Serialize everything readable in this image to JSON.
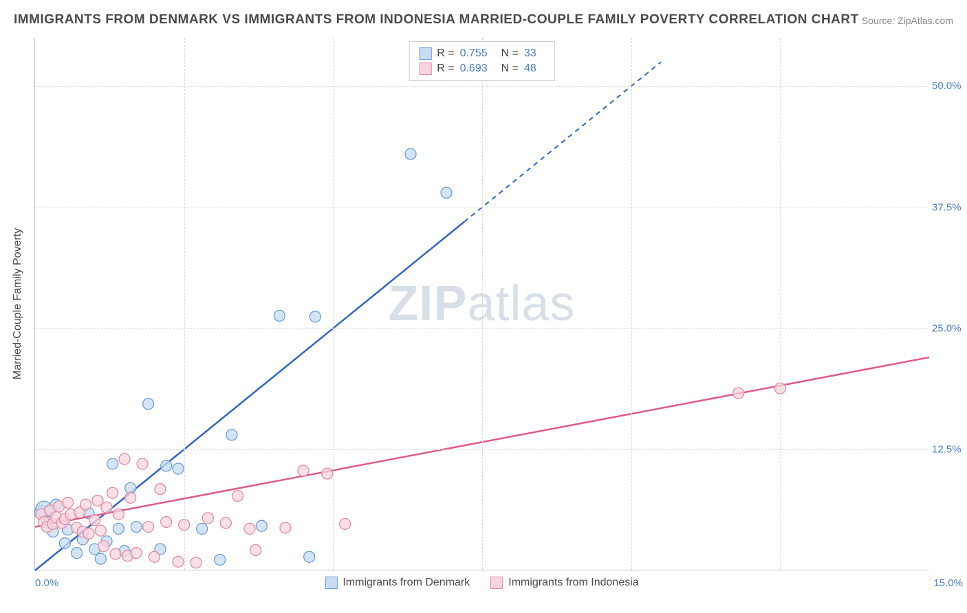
{
  "title": "IMMIGRANTS FROM DENMARK VS IMMIGRANTS FROM INDONESIA MARRIED-COUPLE FAMILY POVERTY CORRELATION CHART",
  "source": "Source: ZipAtlas.com",
  "watermark_a": "ZIP",
  "watermark_b": "atlas",
  "y_axis": {
    "label": "Married-Couple Family Poverty",
    "ticks": [
      {
        "v": 12.5,
        "label": "12.5%"
      },
      {
        "v": 25.0,
        "label": "25.0%"
      },
      {
        "v": 37.5,
        "label": "37.5%"
      },
      {
        "v": 50.0,
        "label": "50.0%"
      }
    ],
    "min": 0,
    "max": 55
  },
  "x_axis": {
    "min": 0,
    "max": 15,
    "left_label": "0.0%",
    "right_label": "15.0%",
    "grid_steps": [
      2.5,
      5.0,
      7.5,
      10.0,
      12.5
    ]
  },
  "series": [
    {
      "key": "denmark",
      "name": "Immigrants from Denmark",
      "R": "0.755",
      "N": "33",
      "color_fill": "#c7dbf2",
      "color_stroke": "#6a9fd8",
      "line_color": "#2e66c4",
      "line_start": {
        "x": 0,
        "y": 0
      },
      "line_solid_end": {
        "x": 7.2,
        "y": 36
      },
      "line_dash_end": {
        "x": 10.5,
        "y": 52.5
      },
      "points": [
        {
          "x": 0.1,
          "y": 6.0,
          "r": 10
        },
        {
          "x": 0.15,
          "y": 6.3,
          "r": 12
        },
        {
          "x": 0.2,
          "y": 5.2
        },
        {
          "x": 0.25,
          "y": 6.1
        },
        {
          "x": 0.3,
          "y": 4.0
        },
        {
          "x": 0.35,
          "y": 6.8
        },
        {
          "x": 0.5,
          "y": 2.8
        },
        {
          "x": 0.55,
          "y": 4.2
        },
        {
          "x": 0.7,
          "y": 1.8
        },
        {
          "x": 0.8,
          "y": 3.2
        },
        {
          "x": 0.9,
          "y": 5.9
        },
        {
          "x": 1.0,
          "y": 2.2
        },
        {
          "x": 1.1,
          "y": 1.2
        },
        {
          "x": 1.2,
          "y": 3.0
        },
        {
          "x": 1.3,
          "y": 11.0
        },
        {
          "x": 1.4,
          "y": 4.3
        },
        {
          "x": 1.5,
          "y": 2.0
        },
        {
          "x": 1.6,
          "y": 8.5
        },
        {
          "x": 1.7,
          "y": 4.5
        },
        {
          "x": 1.9,
          "y": 17.2
        },
        {
          "x": 2.1,
          "y": 2.2
        },
        {
          "x": 2.2,
          "y": 10.8
        },
        {
          "x": 2.4,
          "y": 10.5
        },
        {
          "x": 2.8,
          "y": 4.3
        },
        {
          "x": 3.1,
          "y": 1.1
        },
        {
          "x": 3.3,
          "y": 14.0
        },
        {
          "x": 3.8,
          "y": 4.6
        },
        {
          "x": 4.1,
          "y": 26.3
        },
        {
          "x": 4.6,
          "y": 1.4
        },
        {
          "x": 4.7,
          "y": 26.2
        },
        {
          "x": 6.3,
          "y": 43.0
        },
        {
          "x": 6.9,
          "y": 39.0
        }
      ]
    },
    {
      "key": "indonesia",
      "name": "Immigrants from Indonesia",
      "R": "0.693",
      "N": "48",
      "color_fill": "#f7d4dd",
      "color_stroke": "#e48ba3",
      "line_color": "#e05a87",
      "line_start": {
        "x": 0,
        "y": 4.5
      },
      "line_solid_end": {
        "x": 15,
        "y": 22
      },
      "line_dash_end": null,
      "points": [
        {
          "x": 0.1,
          "y": 5.8
        },
        {
          "x": 0.15,
          "y": 5.0
        },
        {
          "x": 0.2,
          "y": 4.5
        },
        {
          "x": 0.25,
          "y": 6.2
        },
        {
          "x": 0.3,
          "y": 4.8
        },
        {
          "x": 0.35,
          "y": 5.5
        },
        {
          "x": 0.4,
          "y": 6.6
        },
        {
          "x": 0.45,
          "y": 4.9
        },
        {
          "x": 0.5,
          "y": 5.3
        },
        {
          "x": 0.55,
          "y": 7.0
        },
        {
          "x": 0.6,
          "y": 5.8
        },
        {
          "x": 0.7,
          "y": 4.4
        },
        {
          "x": 0.75,
          "y": 6.0
        },
        {
          "x": 0.8,
          "y": 4.0
        },
        {
          "x": 0.85,
          "y": 6.8
        },
        {
          "x": 0.9,
          "y": 3.8
        },
        {
          "x": 1.0,
          "y": 5.2
        },
        {
          "x": 1.05,
          "y": 7.2
        },
        {
          "x": 1.1,
          "y": 4.1
        },
        {
          "x": 1.15,
          "y": 2.5
        },
        {
          "x": 1.2,
          "y": 6.5
        },
        {
          "x": 1.3,
          "y": 8.0
        },
        {
          "x": 1.35,
          "y": 1.7
        },
        {
          "x": 1.4,
          "y": 5.8
        },
        {
          "x": 1.5,
          "y": 11.5
        },
        {
          "x": 1.55,
          "y": 1.5
        },
        {
          "x": 1.6,
          "y": 7.5
        },
        {
          "x": 1.7,
          "y": 1.8
        },
        {
          "x": 1.8,
          "y": 11.0
        },
        {
          "x": 1.9,
          "y": 4.5
        },
        {
          "x": 2.0,
          "y": 1.4
        },
        {
          "x": 2.1,
          "y": 8.4
        },
        {
          "x": 2.2,
          "y": 5.0
        },
        {
          "x": 2.4,
          "y": 0.9
        },
        {
          "x": 2.5,
          "y": 4.7
        },
        {
          "x": 2.7,
          "y": 0.8
        },
        {
          "x": 2.9,
          "y": 5.4
        },
        {
          "x": 3.2,
          "y": 4.9
        },
        {
          "x": 3.4,
          "y": 7.7
        },
        {
          "x": 3.6,
          "y": 4.3
        },
        {
          "x": 3.7,
          "y": 2.1
        },
        {
          "x": 4.2,
          "y": 4.4
        },
        {
          "x": 4.5,
          "y": 10.3
        },
        {
          "x": 4.9,
          "y": 10.0
        },
        {
          "x": 5.2,
          "y": 4.8
        },
        {
          "x": 11.8,
          "y": 18.3
        },
        {
          "x": 12.5,
          "y": 18.8
        }
      ]
    }
  ],
  "legend_labels": {
    "R": "R =",
    "N": "N ="
  },
  "style": {
    "title_color": "#4a4a4a",
    "tick_color": "#4a7ec9",
    "grid_color": "#d8d8d8",
    "bg": "#ffffff",
    "default_marker_r": 8,
    "marker_opacity": 0.75
  }
}
